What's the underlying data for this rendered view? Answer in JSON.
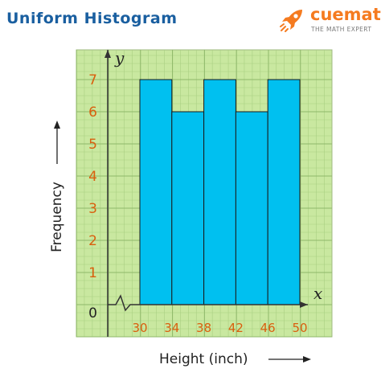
{
  "title": "Uniform Histogram",
  "brand": {
    "name": "cuemath",
    "tagline": "THE MATH EXPERT",
    "icon": "rocket-icon",
    "color": "#f57b20"
  },
  "chart_data": {
    "type": "bar",
    "title": "Uniform Histogram",
    "xlabel": "Height (inch)",
    "ylabel": "Frequency",
    "x_axis_letter": "x",
    "y_axis_letter": "y",
    "bins": [
      {
        "from": 30,
        "to": 34,
        "value": 7
      },
      {
        "from": 34,
        "to": 38,
        "value": 6
      },
      {
        "from": 38,
        "to": 42,
        "value": 7
      },
      {
        "from": 42,
        "to": 46,
        "value": 6
      },
      {
        "from": 46,
        "to": 50,
        "value": 7
      }
    ],
    "x_ticks": [
      "30",
      "34",
      "38",
      "42",
      "46",
      "50"
    ],
    "y_ticks": [
      "0",
      "1",
      "2",
      "3",
      "4",
      "5",
      "6",
      "7"
    ],
    "ylim": [
      0,
      7
    ],
    "grid": true,
    "axis_break": true,
    "colors": {
      "bar": "#00c0f0",
      "grid_background": "#c9e8a0",
      "tick_labels": "#d95f0e",
      "title": "#1a5fa0"
    }
  }
}
